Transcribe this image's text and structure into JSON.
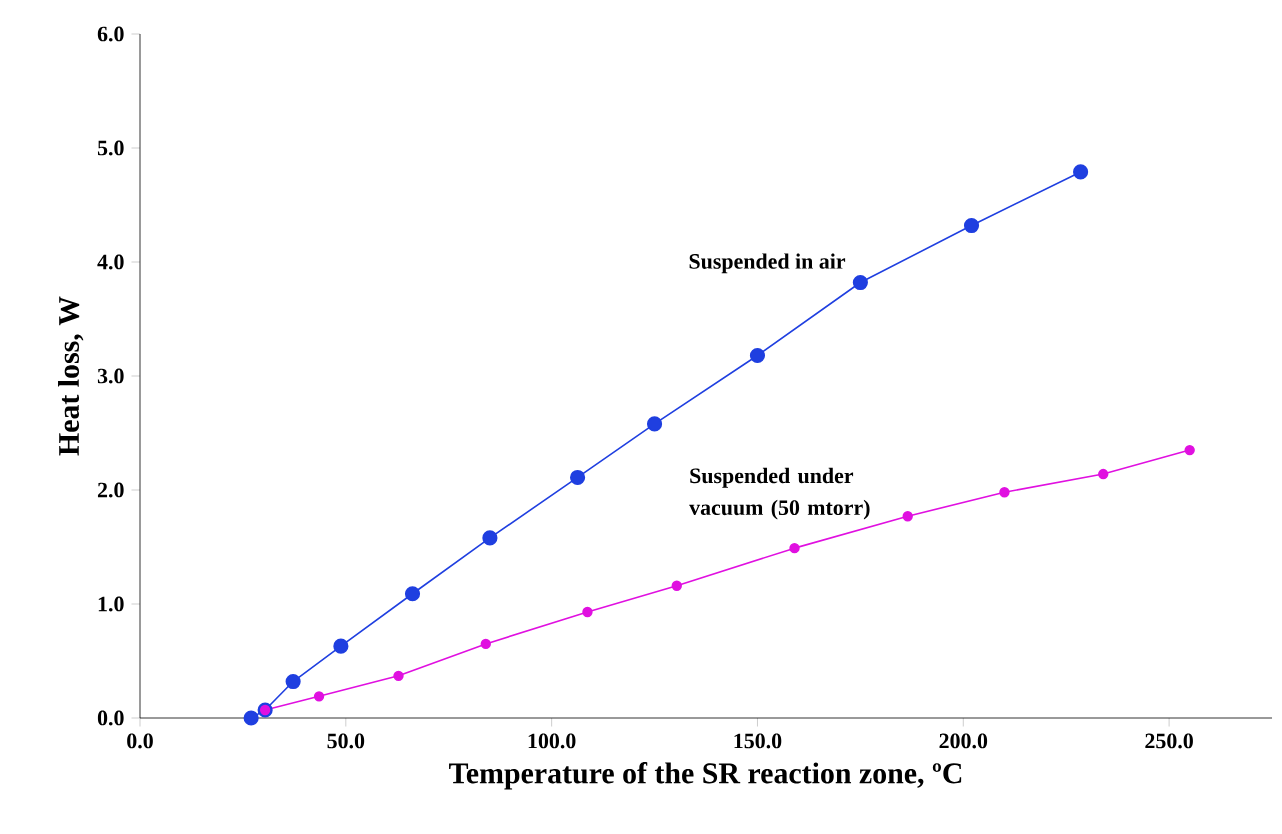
{
  "chart_data": {
    "type": "line",
    "xlabel": "Temperature of the SR reaction zone, ºC",
    "ylabel": "Heat loss, W",
    "xlim": [
      0,
      275
    ],
    "ylim": [
      0,
      6
    ],
    "xticks": [
      {
        "value": 0,
        "label": "0.0"
      },
      {
        "value": 50,
        "label": "50.0"
      },
      {
        "value": 100,
        "label": "100.0"
      },
      {
        "value": 150,
        "label": "150.0"
      },
      {
        "value": 200,
        "label": "200.0"
      },
      {
        "value": 250,
        "label": "250.0"
      }
    ],
    "yticks": [
      {
        "value": 0,
        "label": "0.0"
      },
      {
        "value": 1,
        "label": "1.0"
      },
      {
        "value": 2,
        "label": "2.0"
      },
      {
        "value": 3,
        "label": "3.0"
      },
      {
        "value": 4,
        "label": "4.0"
      },
      {
        "value": 5,
        "label": "5.0"
      },
      {
        "value": 6,
        "label": "6.0"
      }
    ],
    "marker": "circle",
    "line_style": "solid",
    "legend": false,
    "grid": false,
    "series": [
      {
        "name": "Suspended in air",
        "color": "#1f3fe0",
        "x": [
          27,
          30.4,
          37.2,
          48.8,
          66.2,
          85,
          106.3,
          125,
          150,
          175,
          202,
          228.5
        ],
        "values": [
          0,
          0.07,
          0.32,
          0.63,
          1.09,
          1.58,
          2.11,
          2.58,
          3.18,
          3.82,
          4.32,
          4.79
        ]
      },
      {
        "name": "Suspended under vacuum (50 mtorr)",
        "color": "#e010e0",
        "x": [
          30.4,
          43.5,
          62.8,
          84,
          108.7,
          130.4,
          159,
          186.5,
          210,
          234,
          255
        ],
        "values": [
          0.07,
          0.19,
          0.37,
          0.65,
          0.93,
          1.16,
          1.49,
          1.77,
          1.98,
          2.14,
          2.35
        ]
      }
    ]
  }
}
